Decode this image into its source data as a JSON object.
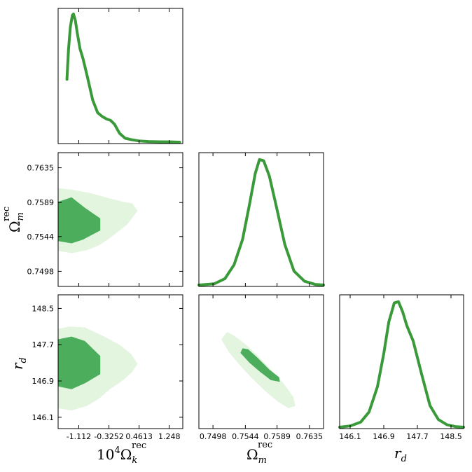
{
  "colors": {
    "line": "#3a9a3a",
    "inner": "#4cad5c",
    "outer": "#e3f4df",
    "frame": "#000000"
  },
  "labels": {
    "ok_prefix": "10",
    "ok_exp": "4",
    "ok_symbol": "Ω",
    "ok_sub": "k",
    "om_symbol": "Ω",
    "om_sub": "m",
    "rec": "rec",
    "rd_symbol": "r",
    "rd_sub": "d"
  },
  "chart_data": {
    "type": "corner",
    "parameters": [
      "10^4 Ω_k^rec",
      "Ω_m^rec",
      "r_d"
    ],
    "ranges": {
      "ok": [
        -1.65,
        1.6
      ],
      "om": [
        0.7478,
        0.7655
      ],
      "rd": [
        145.85,
        148.8
      ]
    },
    "ticks": {
      "ok": [
        "-1.112",
        "-0.3252",
        "0.4613",
        "1.248"
      ],
      "om": [
        "0.7498",
        "0.7544",
        "0.7589",
        "0.7635"
      ],
      "rd": [
        "146.1",
        "146.9",
        "147.7",
        "148.5"
      ]
    },
    "marginals": {
      "ok": {
        "x": [
          -1.42,
          -1.38,
          -1.33,
          -1.28,
          -1.25,
          -1.2,
          -1.15,
          -1.08,
          -1.0,
          -0.88,
          -0.75,
          -0.62,
          -0.5,
          -0.38,
          -0.28,
          -0.18,
          -0.05,
          0.1,
          0.25,
          0.45,
          0.7,
          1.0,
          1.3,
          1.52
        ],
        "y": [
          0.49,
          0.72,
          0.9,
          0.99,
          1.0,
          0.95,
          0.85,
          0.73,
          0.65,
          0.5,
          0.33,
          0.23,
          0.2,
          0.18,
          0.17,
          0.14,
          0.07,
          0.03,
          0.02,
          0.01,
          0.005,
          0.003,
          0.002,
          0.0
        ]
      },
      "om": {
        "x": [
          0.7478,
          0.75,
          0.7515,
          0.7528,
          0.754,
          0.755,
          0.7558,
          0.7564,
          0.757,
          0.7578,
          0.7588,
          0.76,
          0.7613,
          0.7628,
          0.7643,
          0.7655
        ],
        "y": [
          0.0,
          0.01,
          0.05,
          0.16,
          0.36,
          0.64,
          0.88,
          0.99,
          0.98,
          0.86,
          0.62,
          0.32,
          0.11,
          0.03,
          0.005,
          0.0
        ]
      },
      "rd": {
        "x": [
          145.85,
          146.1,
          146.35,
          146.55,
          146.75,
          146.9,
          147.02,
          147.15,
          147.25,
          147.35,
          147.45,
          147.6,
          147.8,
          148.0,
          148.2,
          148.4,
          148.6,
          148.8
        ],
        "y": [
          0.0,
          0.01,
          0.04,
          0.12,
          0.32,
          0.58,
          0.83,
          0.98,
          0.99,
          0.91,
          0.8,
          0.68,
          0.42,
          0.17,
          0.06,
          0.02,
          0.005,
          0.0
        ]
      }
    },
    "contours": {
      "ok_om": {
        "outer": [
          [
            -1.65,
            0.7525
          ],
          [
            -1.3,
            0.7522
          ],
          [
            -0.9,
            0.7526
          ],
          [
            -0.6,
            0.7532
          ],
          [
            -0.3,
            0.7542
          ],
          [
            -0.05,
            0.7552
          ],
          [
            0.15,
            0.756
          ],
          [
            0.3,
            0.757
          ],
          [
            0.42,
            0.7578
          ],
          [
            0.28,
            0.7588
          ],
          [
            0.05,
            0.759
          ],
          [
            -0.35,
            0.7595
          ],
          [
            -0.85,
            0.7602
          ],
          [
            -1.3,
            0.7606
          ],
          [
            -1.65,
            0.7608
          ]
        ],
        "inner": [
          [
            -1.65,
            0.7538
          ],
          [
            -1.3,
            0.7535
          ],
          [
            -1.0,
            0.754
          ],
          [
            -0.55,
            0.7552
          ],
          [
            -0.55,
            0.7568
          ],
          [
            -0.95,
            0.7582
          ],
          [
            -1.3,
            0.7596
          ],
          [
            -1.65,
            0.759
          ]
        ]
      },
      "ok_rd": {
        "outer": [
          [
            -1.65,
            146.3
          ],
          [
            -1.3,
            146.25
          ],
          [
            -0.9,
            146.35
          ],
          [
            -0.6,
            146.5
          ],
          [
            -0.3,
            146.72
          ],
          [
            0.05,
            146.92
          ],
          [
            0.28,
            147.1
          ],
          [
            0.42,
            147.28
          ],
          [
            0.25,
            147.5
          ],
          [
            -0.05,
            147.7
          ],
          [
            -0.45,
            147.88
          ],
          [
            -0.95,
            148.08
          ],
          [
            -1.35,
            148.1
          ],
          [
            -1.65,
            148.05
          ]
        ],
        "inner": [
          [
            -1.65,
            146.78
          ],
          [
            -1.3,
            146.72
          ],
          [
            -0.95,
            146.85
          ],
          [
            -0.55,
            147.05
          ],
          [
            -0.55,
            147.45
          ],
          [
            -0.95,
            147.78
          ],
          [
            -1.3,
            147.88
          ],
          [
            -1.65,
            147.82
          ]
        ]
      },
      "om_rd": {
        "outer": [
          [
            0.7518,
            147.98
          ],
          [
            0.7528,
            147.9
          ],
          [
            0.7545,
            147.7
          ],
          [
            0.7562,
            147.45
          ],
          [
            0.758,
            147.15
          ],
          [
            0.7598,
            146.85
          ],
          [
            0.7612,
            146.55
          ],
          [
            0.7615,
            146.35
          ],
          [
            0.7605,
            146.3
          ],
          [
            0.759,
            146.45
          ],
          [
            0.7572,
            146.68
          ],
          [
            0.7554,
            146.95
          ],
          [
            0.7536,
            147.25
          ],
          [
            0.752,
            147.55
          ],
          [
            0.751,
            147.82
          ]
        ],
        "inner": [
          [
            0.754,
            147.62
          ],
          [
            0.7548,
            147.6
          ],
          [
            0.7562,
            147.4
          ],
          [
            0.7578,
            147.15
          ],
          [
            0.7592,
            146.98
          ],
          [
            0.7593,
            146.88
          ],
          [
            0.758,
            146.92
          ],
          [
            0.7565,
            147.1
          ],
          [
            0.755,
            147.3
          ],
          [
            0.7537,
            147.52
          ]
        ]
      }
    }
  }
}
